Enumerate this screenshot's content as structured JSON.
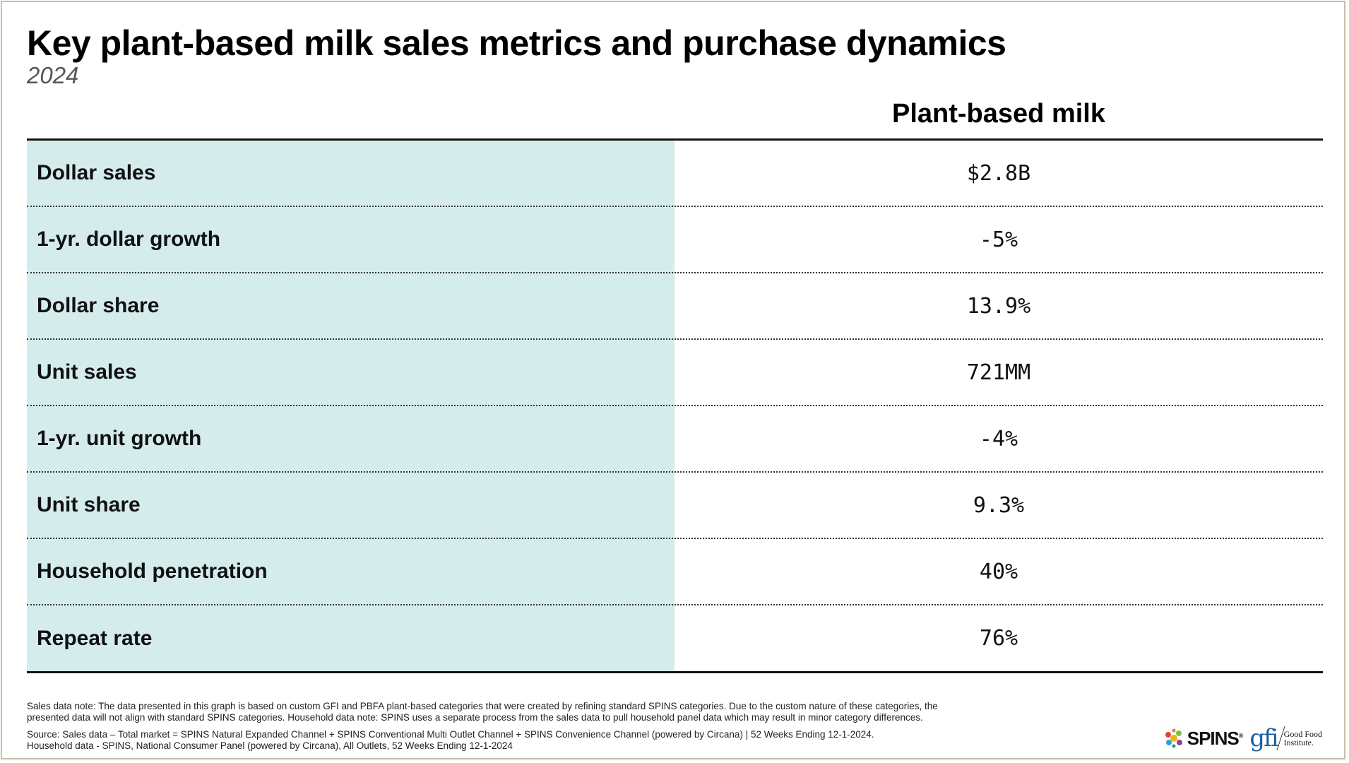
{
  "header": {
    "title": "Key plant-based milk sales metrics and purchase dynamics",
    "subtitle": "2024"
  },
  "chart_data": {
    "type": "table",
    "columns": [
      "",
      "Plant-based milk"
    ],
    "rows": [
      {
        "label": "Dollar sales",
        "value": "$2.8B"
      },
      {
        "label": "1-yr. dollar growth",
        "value": "-5%"
      },
      {
        "label": "Dollar share",
        "value": "13.9%"
      },
      {
        "label": "Unit sales",
        "value": "721MM"
      },
      {
        "label": "1-yr. unit growth",
        "value": "-4%"
      },
      {
        "label": "Unit share",
        "value": "9.3%"
      },
      {
        "label": "Household penetration",
        "value": "40%"
      },
      {
        "label": "Repeat rate",
        "value": "76%"
      }
    ]
  },
  "colors": {
    "label_column_bg": "#d5eced",
    "frame_border": "#c8bfa6",
    "gfi_blue": "#1a5fa3"
  },
  "notes": {
    "sales_note_1": "Sales data note: The data presented in this graph is based on custom GFI and PBFA plant-based categories that were created by refining standard SPINS categories.  Due to the custom nature of these categories, the",
    "sales_note_2": "presented data will not align with standard SPINS categories. Household data note: SPINS uses a separate process from the sales data to pull household panel data which may result in minor category differences.",
    "source_1": "Source: Sales data – Total market = SPINS Natural Expanded Channel + SPINS Conventional Multi Outlet Channel + SPINS Convenience Channel (powered by Circana) | 52 Weeks Ending 12-1-2024.",
    "source_2": "Household data - SPINS, National Consumer Panel (powered by Circana), All Outlets, 52 Weeks Ending 12-1-2024"
  },
  "logos": {
    "spins": "SPINS",
    "spins_reg": "®",
    "gfi_mark": "gfi",
    "gfi_name": "Good Food\nInstitute."
  }
}
